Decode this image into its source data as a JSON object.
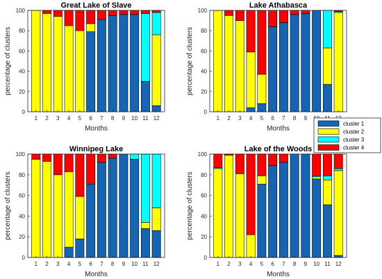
{
  "colors": {
    "cluster1": "#1565b5",
    "cluster2": "#ffff00",
    "cluster3": "#00ffff",
    "cluster4": "#ff0000"
  },
  "legend": [
    "cluster 1",
    "cluster 2",
    "cluster 3",
    "cluster 4"
  ],
  "chart_data": [
    {
      "type": "bar",
      "stacked": true,
      "title": "Great Lake of Slave",
      "xlabel": "Months",
      "ylabel": "percentage of clusters",
      "categories": [
        "1",
        "2",
        "3",
        "4",
        "5",
        "6",
        "7",
        "8",
        "9",
        "10",
        "11",
        "12"
      ],
      "ylim": [
        0,
        100
      ],
      "yticks": [
        0,
        20,
        40,
        60,
        80,
        100
      ],
      "series": [
        {
          "name": "cluster 1",
          "values": [
            0,
            0,
            0,
            0,
            0,
            79,
            91,
            95,
            96,
            96,
            30,
            6
          ]
        },
        {
          "name": "cluster 2",
          "values": [
            100,
            97,
            94,
            85,
            80,
            8,
            0,
            0,
            0,
            0,
            0,
            70
          ]
        },
        {
          "name": "cluster 3",
          "values": [
            0,
            0,
            0,
            0,
            0,
            0,
            0,
            0,
            0,
            0,
            67,
            22
          ]
        },
        {
          "name": "cluster 4",
          "values": [
            0,
            3,
            6,
            15,
            20,
            13,
            9,
            5,
            4,
            4,
            3,
            2
          ]
        }
      ]
    },
    {
      "type": "bar",
      "stacked": true,
      "title": "Lake Athabasca",
      "xlabel": "Months",
      "ylabel": "percentage of clusters",
      "categories": [
        "1",
        "2",
        "3",
        "4",
        "5",
        "6",
        "7",
        "8",
        "9",
        "10",
        "11",
        "12"
      ],
      "ylim": [
        0,
        100
      ],
      "yticks": [
        0,
        20,
        40,
        60,
        80,
        100
      ],
      "series": [
        {
          "name": "cluster 1",
          "values": [
            0,
            0,
            0,
            4,
            8,
            84,
            88,
            96,
            97,
            100,
            27,
            0
          ]
        },
        {
          "name": "cluster 2",
          "values": [
            100,
            95,
            90,
            55,
            29,
            0,
            0,
            0,
            0,
            0,
            36,
            98
          ]
        },
        {
          "name": "cluster 3",
          "values": [
            0,
            0,
            0,
            0,
            0,
            0,
            0,
            0,
            0,
            0,
            37,
            1
          ]
        },
        {
          "name": "cluster 4",
          "values": [
            0,
            5,
            10,
            41,
            63,
            16,
            12,
            4,
            3,
            0,
            0,
            1
          ]
        }
      ]
    },
    {
      "type": "bar",
      "stacked": true,
      "title": "Winnipeg Lake",
      "xlabel": "Months",
      "ylabel": "percentage of clusters",
      "categories": [
        "1",
        "2",
        "3",
        "4",
        "5",
        "6",
        "7",
        "8",
        "9",
        "10",
        "11",
        "12"
      ],
      "ylim": [
        0,
        100
      ],
      "yticks": [
        0,
        20,
        40,
        60,
        80,
        100
      ],
      "series": [
        {
          "name": "cluster 1",
          "values": [
            0,
            0,
            0,
            10,
            18,
            71,
            92,
            96,
            100,
            95,
            28,
            26
          ]
        },
        {
          "name": "cluster 2",
          "values": [
            95,
            93,
            80,
            73,
            41,
            0,
            0,
            0,
            0,
            0,
            6,
            22
          ]
        },
        {
          "name": "cluster 3",
          "values": [
            0,
            0,
            0,
            0,
            0,
            0,
            0,
            0,
            0,
            5,
            66,
            52
          ]
        },
        {
          "name": "cluster 4",
          "values": [
            5,
            7,
            20,
            17,
            41,
            29,
            8,
            4,
            0,
            0,
            0,
            0
          ]
        }
      ]
    },
    {
      "type": "bar",
      "stacked": true,
      "title": "Lake of the Woods",
      "xlabel": "Months",
      "ylabel": "percentage of clusters",
      "categories": [
        "1",
        "2",
        "3",
        "4",
        "5",
        "6",
        "7",
        "8",
        "9",
        "10",
        "11",
        "12"
      ],
      "ylim": [
        0,
        100
      ],
      "yticks": [
        0,
        20,
        40,
        60,
        80,
        100
      ],
      "series": [
        {
          "name": "cluster 1",
          "values": [
            0,
            0,
            0,
            0,
            71,
            89,
            92,
            100,
            100,
            76,
            51,
            2
          ]
        },
        {
          "name": "cluster 2",
          "values": [
            86,
            99,
            81,
            22,
            8,
            0,
            0,
            0,
            0,
            2,
            24,
            82
          ]
        },
        {
          "name": "cluster 3",
          "values": [
            1,
            0,
            0,
            0,
            0,
            0,
            0,
            0,
            0,
            1,
            4,
            2
          ]
        },
        {
          "name": "cluster 4",
          "values": [
            13,
            1,
            19,
            78,
            21,
            11,
            8,
            0,
            0,
            21,
            21,
            14
          ]
        }
      ]
    }
  ]
}
